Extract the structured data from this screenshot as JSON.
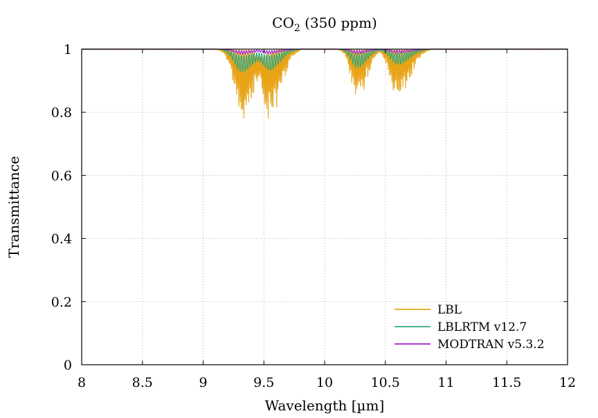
{
  "chart_data": {
    "type": "line",
    "title": "CO",
    "title_subscript": "2",
    "title_suffix": " (350 ppm)",
    "xlabel": "Wavelength  [µm]",
    "ylabel": "Transmittance",
    "xlim": [
      8,
      12
    ],
    "ylim": [
      0,
      1
    ],
    "xticks": [
      8,
      8.5,
      9,
      9.5,
      10,
      10.5,
      11,
      11.5,
      12
    ],
    "xtick_labels": [
      "8",
      "8.5",
      "9",
      "9.5",
      "10",
      "10.5",
      "11",
      "11.5",
      "12"
    ],
    "yticks": [
      0,
      0.2,
      0.4,
      0.6,
      0.8,
      1
    ],
    "ytick_labels": [
      "0",
      "0.2",
      "0.4",
      "0.6",
      "0.8",
      "1"
    ],
    "grid": true,
    "legend_position": "bottom-right",
    "bands": [
      {
        "center": 9.32,
        "width": 0.22,
        "shape": "p-branch"
      },
      {
        "center": 9.55,
        "width": 0.2,
        "shape": "r-branch"
      },
      {
        "center": 10.27,
        "width": 0.18,
        "shape": "p-branch"
      },
      {
        "center": 10.6,
        "width": 0.22,
        "shape": "r-branch"
      }
    ],
    "series": [
      {
        "name": "LBL",
        "color": "#e8a317",
        "style": "line-by-line spikes",
        "band_min_transmittance": [
          0.74,
          0.76,
          0.83,
          0.83
        ]
      },
      {
        "name": "LBLRTM v12.7",
        "color": "#2fa87e",
        "style": "band envelope",
        "band_min_transmittance": [
          0.925,
          0.935,
          0.94,
          0.95
        ]
      },
      {
        "name": "MODTRAN v5.3.2",
        "color": "#a020d0",
        "style": "band envelope",
        "band_min_transmittance": [
          0.983,
          0.985,
          0.985,
          0.987
        ]
      }
    ]
  }
}
